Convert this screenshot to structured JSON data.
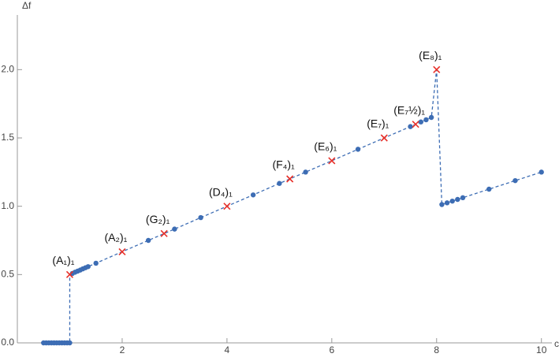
{
  "chart_data": {
    "type": "scatter",
    "x_label": "c",
    "y_label": "Δf",
    "xlim": [
      0,
      10.2
    ],
    "ylim": [
      0,
      2.4
    ],
    "xticks": [
      2,
      4,
      6,
      8,
      10
    ],
    "yticks": [
      {
        "value": 0,
        "label": "0.0"
      },
      0.5,
      {
        "value": 1,
        "label": "1.0"
      },
      1.5,
      {
        "value": 2,
        "label": "2.0"
      }
    ],
    "line_color": "#3d6db4",
    "series": [
      {
        "name": "points",
        "color": "#3d6db4",
        "marker": "dot",
        "x": [
          0.5,
          0.55,
          0.6,
          0.65,
          0.7,
          0.75,
          0.8,
          0.85,
          0.9,
          0.95,
          1.0,
          1.05,
          1.1,
          1.15,
          1.2,
          1.25,
          1.3,
          1.35,
          1.5,
          2.5,
          3.0,
          3.5,
          4.5,
          5.0,
          5.5,
          6.5,
          7.5,
          7.7,
          7.8,
          7.9,
          8.1,
          8.2,
          8.3,
          8.4,
          8.5,
          9.0,
          9.5,
          10.0
        ],
        "values": [
          0,
          0,
          0,
          0,
          0,
          0,
          0,
          0,
          0,
          0,
          0,
          0.508,
          0.517,
          0.525,
          0.533,
          0.542,
          0.55,
          0.558,
          0.583,
          0.75,
          0.833,
          0.917,
          1.083,
          1.167,
          1.25,
          1.417,
          1.583,
          1.617,
          1.633,
          1.65,
          1.0125,
          1.025,
          1.0375,
          1.05,
          1.0625,
          1.125,
          1.1875,
          1.25
        ]
      },
      {
        "name": "special",
        "color": "#e8312a",
        "marker": "cross",
        "x": [
          1,
          2,
          2.8,
          4,
          5.2,
          6,
          7,
          7.6,
          8
        ],
        "values": [
          0.5,
          0.667,
          0.8,
          1.0,
          1.2,
          1.333,
          1.5,
          1.6,
          2.0
        ],
        "labels": [
          "(A₁)₁",
          "(A₂)₁",
          "(G₂)₁",
          "(D₄)₁",
          "(F₄)₁",
          "(E₆)₁",
          "(E₇)₁",
          "(E₇½)₁",
          "(E₈)₁"
        ]
      }
    ]
  }
}
